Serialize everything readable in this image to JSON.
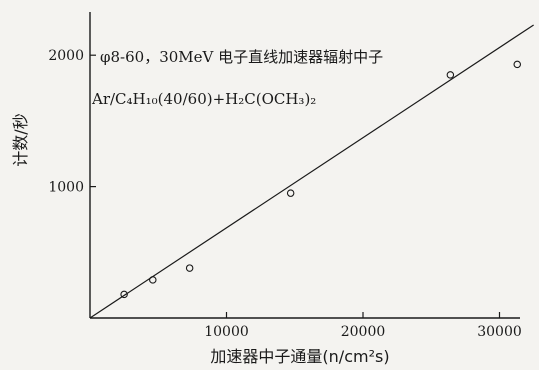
{
  "chart_data": {
    "type": "scatter",
    "title_line1": "φ8-60，30MeV 电子直线加速器辐射中子",
    "title_line2": "Ar/C₄H₁₀(40/60)+H₂C(OCH₃)₂",
    "xlabel": "加速器中子通量(n/cm²s)",
    "ylabel": "计数/秒",
    "xlim": [
      0,
      33000
    ],
    "ylim": [
      0,
      2300
    ],
    "x_ticks": [
      10000,
      20000,
      30000
    ],
    "y_ticks": [
      1000,
      2000
    ],
    "x_tick_labels": [
      "10000",
      "20000",
      "30000"
    ],
    "y_tick_labels": [
      "1000",
      "2000"
    ],
    "points": [
      {
        "x": 2500,
        "y": 180
      },
      {
        "x": 4600,
        "y": 290
      },
      {
        "x": 7300,
        "y": 380
      },
      {
        "x": 14700,
        "y": 950
      },
      {
        "x": 26400,
        "y": 1850
      },
      {
        "x": 31300,
        "y": 1930
      }
    ],
    "fit_line": {
      "x": [
        0,
        32500
      ],
      "y": [
        0,
        2230
      ]
    },
    "grid": false
  }
}
